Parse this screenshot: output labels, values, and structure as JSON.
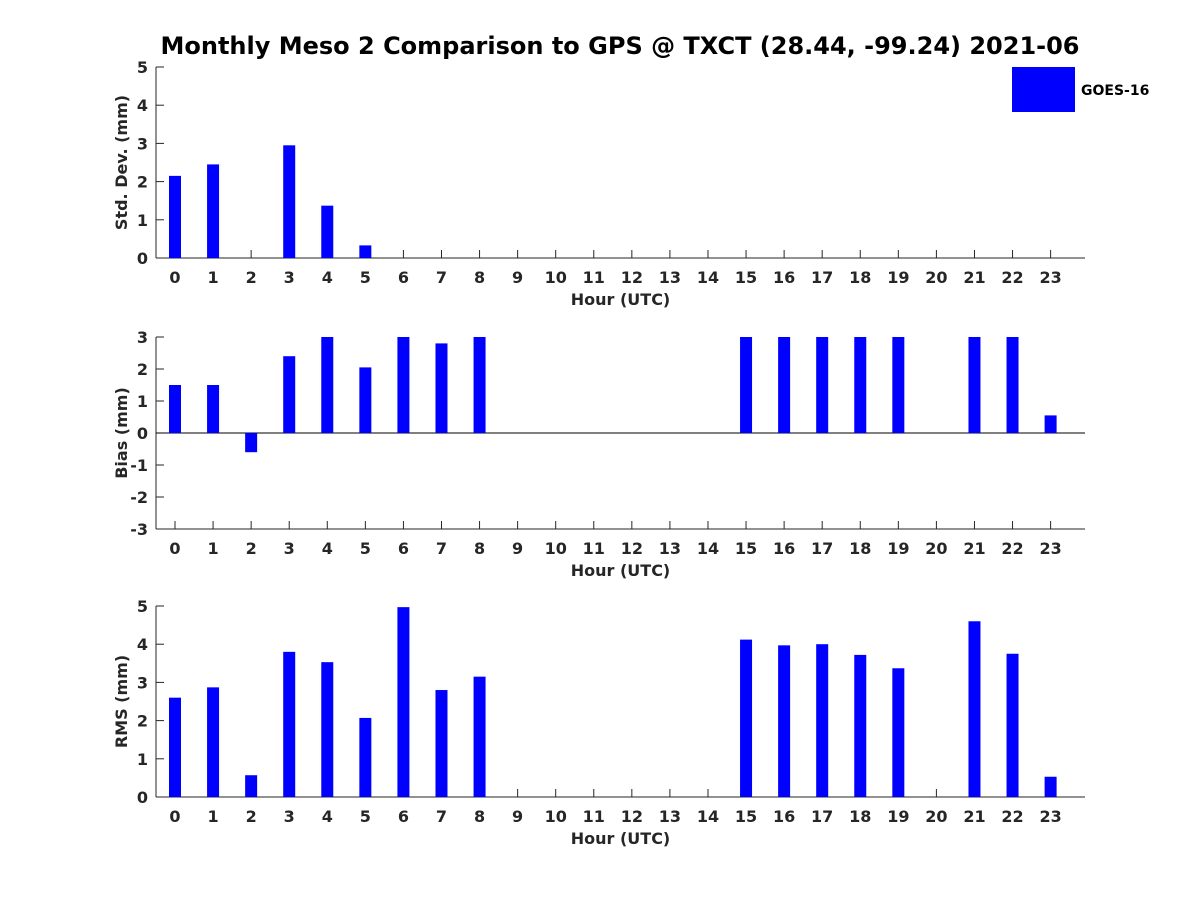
{
  "colors": {
    "bar": "#0000ff",
    "axis": "#262626",
    "background": "#ffffff"
  },
  "chart_data": {
    "type": "bar",
    "title": "Monthly Meso 2 Comparison to GPS @ TXCT (28.44, -99.24) 2021-06",
    "legend": {
      "label": "GOES-16",
      "placement": "top-right"
    },
    "categories": [
      "0",
      "1",
      "2",
      "3",
      "4",
      "5",
      "6",
      "7",
      "8",
      "9",
      "10",
      "11",
      "12",
      "13",
      "14",
      "15",
      "16",
      "17",
      "18",
      "19",
      "20",
      "21",
      "22",
      "23"
    ],
    "panels": [
      {
        "ylabel": "Std. Dev. (mm)",
        "xlabel": "Hour (UTC)",
        "ylim": [
          0,
          5
        ],
        "yticks": [
          "0",
          "1",
          "2",
          "3",
          "4",
          "5"
        ],
        "values": [
          2.15,
          2.45,
          null,
          2.95,
          1.37,
          0.33,
          null,
          null,
          null,
          null,
          null,
          null,
          null,
          null,
          null,
          null,
          null,
          null,
          null,
          null,
          null,
          null,
          null,
          null
        ]
      },
      {
        "ylabel": "Bias (mm)",
        "xlabel": "Hour (UTC)",
        "ylim": [
          -3,
          3
        ],
        "yticks": [
          "-3",
          "-2",
          "-1",
          "0",
          "1",
          "2",
          "3"
        ],
        "values": [
          1.5,
          1.5,
          -0.6,
          2.4,
          3.0,
          2.05,
          3.0,
          2.8,
          3.0,
          null,
          null,
          null,
          null,
          null,
          null,
          3.0,
          3.0,
          3.0,
          3.0,
          3.0,
          null,
          3.0,
          3.0,
          0.55
        ]
      },
      {
        "ylabel": "RMS (mm)",
        "xlabel": "Hour (UTC)",
        "ylim": [
          0,
          5
        ],
        "yticks": [
          "0",
          "1",
          "2",
          "3",
          "4",
          "5"
        ],
        "values": [
          2.6,
          2.87,
          0.57,
          3.8,
          3.53,
          2.07,
          4.97,
          2.8,
          3.15,
          null,
          null,
          null,
          null,
          null,
          null,
          4.12,
          3.97,
          4.0,
          3.72,
          3.37,
          null,
          4.6,
          3.75,
          0.53
        ]
      }
    ]
  }
}
